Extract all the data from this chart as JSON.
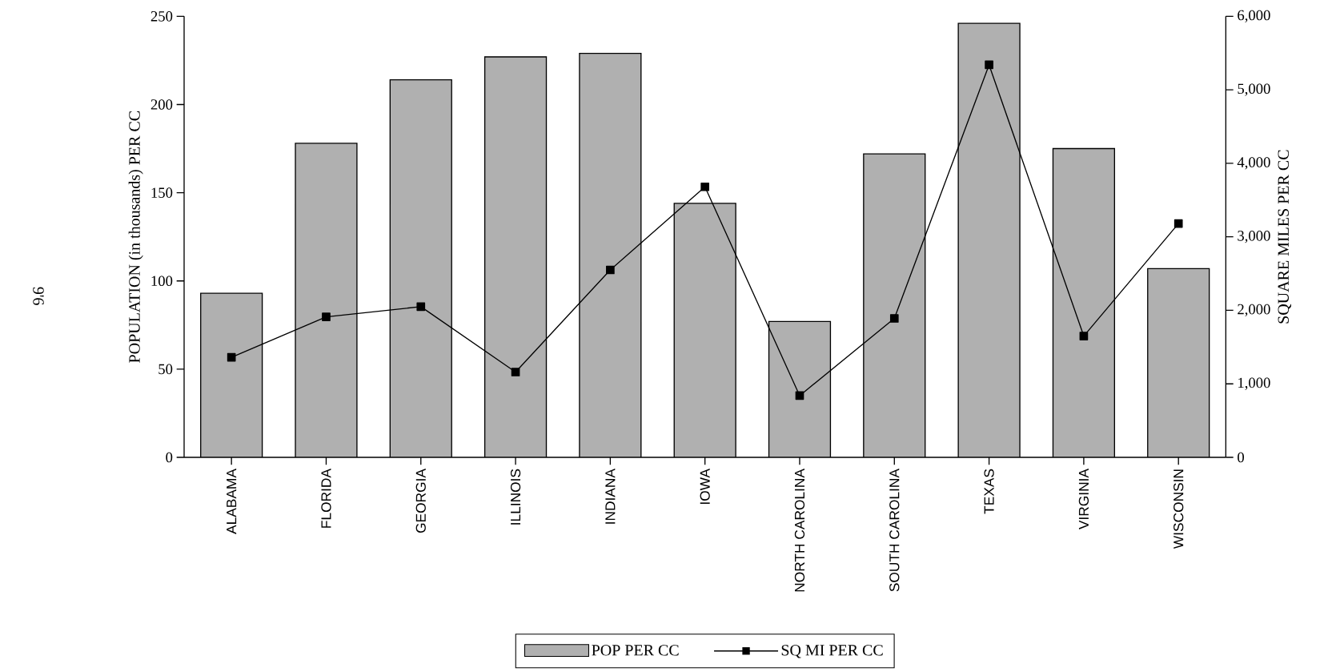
{
  "chart_data": {
    "type": "bar",
    "categories": [
      "ALABAMA",
      "FLORIDA",
      "GEORGIA",
      "ILLINOIS",
      "INDIANA",
      "IOWA",
      "NORTH CAROLINA",
      "SOUTH CAROLINA",
      "TEXAS",
      "VIRGINIA",
      "WISCONSIN"
    ],
    "series": [
      {
        "name": "POP PER CC",
        "color": "#b0b0b0",
        "values": [
          93,
          178,
          214,
          227,
          229,
          144,
          77,
          172,
          246,
          175,
          107
        ]
      },
      {
        "name": "SQ MI PER CC",
        "type": "line",
        "axis": "y2",
        "color": "#000000",
        "values": [
          1360,
          1910,
          2050,
          1160,
          2550,
          3680,
          840,
          1890,
          5340,
          1650,
          3180
        ]
      }
    ],
    "ylabel": "POPULATION (in thousands) PER CC",
    "y2label": "SQUARE MILES PER CC",
    "ylim": [
      0,
      250
    ],
    "yticks": [
      0,
      50,
      100,
      150,
      200,
      250
    ],
    "y2lim": [
      0,
      6000
    ],
    "y2ticks": [
      0,
      {
        "value": 1000,
        "label": "1,000"
      },
      {
        "value": 2000,
        "label": "2,000"
      },
      {
        "value": 3000,
        "label": "3,000"
      },
      {
        "value": 4000,
        "label": "4,000"
      },
      {
        "value": 5000,
        "label": "5,000"
      },
      {
        "value": 6000,
        "label": "6,000"
      }
    ],
    "marker": "square",
    "legend": "bottom",
    "grid": false,
    "annotations": [
      "9'6"
    ]
  }
}
